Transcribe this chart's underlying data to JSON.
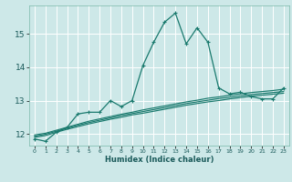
{
  "xlabel": "Humidex (Indice chaleur)",
  "background_color": "#cde8e8",
  "grid_color": "#ffffff",
  "line_color": "#1a7a6e",
  "xlim": [
    -0.5,
    23.5
  ],
  "ylim": [
    11.65,
    15.85
  ],
  "xticks": [
    0,
    1,
    2,
    3,
    4,
    5,
    6,
    7,
    8,
    9,
    10,
    11,
    12,
    13,
    14,
    15,
    16,
    17,
    18,
    19,
    20,
    21,
    22,
    23
  ],
  "yticks": [
    12,
    13,
    14,
    15
  ],
  "main_x": [
    0,
    1,
    2,
    3,
    4,
    5,
    6,
    7,
    8,
    9,
    10,
    11,
    12,
    13,
    14,
    15,
    16,
    17,
    18,
    19,
    20,
    21,
    22,
    23
  ],
  "main_y": [
    11.85,
    11.78,
    12.05,
    12.2,
    12.6,
    12.65,
    12.65,
    13.0,
    12.82,
    13.0,
    14.05,
    14.75,
    15.35,
    15.62,
    14.7,
    15.18,
    14.75,
    13.38,
    13.2,
    13.25,
    13.12,
    13.05,
    13.05,
    13.38
  ],
  "line1_x": [
    0,
    1,
    2,
    3,
    4,
    5,
    6,
    7,
    8,
    9,
    10,
    11,
    12,
    13,
    14,
    15,
    16,
    17,
    18,
    19,
    20,
    21,
    22,
    23
  ],
  "line1_y": [
    11.9,
    11.95,
    12.05,
    12.14,
    12.22,
    12.3,
    12.37,
    12.44,
    12.5,
    12.57,
    12.62,
    12.68,
    12.74,
    12.8,
    12.86,
    12.91,
    12.96,
    13.0,
    13.05,
    13.09,
    13.13,
    13.16,
    13.19,
    13.22
  ],
  "line2_x": [
    0,
    1,
    2,
    3,
    4,
    5,
    6,
    7,
    8,
    9,
    10,
    11,
    12,
    13,
    14,
    15,
    16,
    17,
    18,
    19,
    20,
    21,
    22,
    23
  ],
  "line2_y": [
    11.93,
    11.99,
    12.08,
    12.17,
    12.26,
    12.34,
    12.41,
    12.48,
    12.55,
    12.61,
    12.67,
    12.73,
    12.79,
    12.85,
    12.91,
    12.96,
    13.01,
    13.06,
    13.1,
    13.14,
    13.18,
    13.21,
    13.24,
    13.27
  ],
  "line3_x": [
    0,
    1,
    2,
    3,
    4,
    5,
    6,
    7,
    8,
    9,
    10,
    11,
    12,
    13,
    14,
    15,
    16,
    17,
    18,
    19,
    20,
    21,
    22,
    23
  ],
  "line3_y": [
    11.97,
    12.02,
    12.11,
    12.2,
    12.29,
    12.38,
    12.45,
    12.52,
    12.59,
    12.65,
    12.72,
    12.78,
    12.84,
    12.9,
    12.96,
    13.01,
    13.07,
    13.11,
    13.16,
    13.2,
    13.24,
    13.27,
    13.3,
    13.34
  ]
}
